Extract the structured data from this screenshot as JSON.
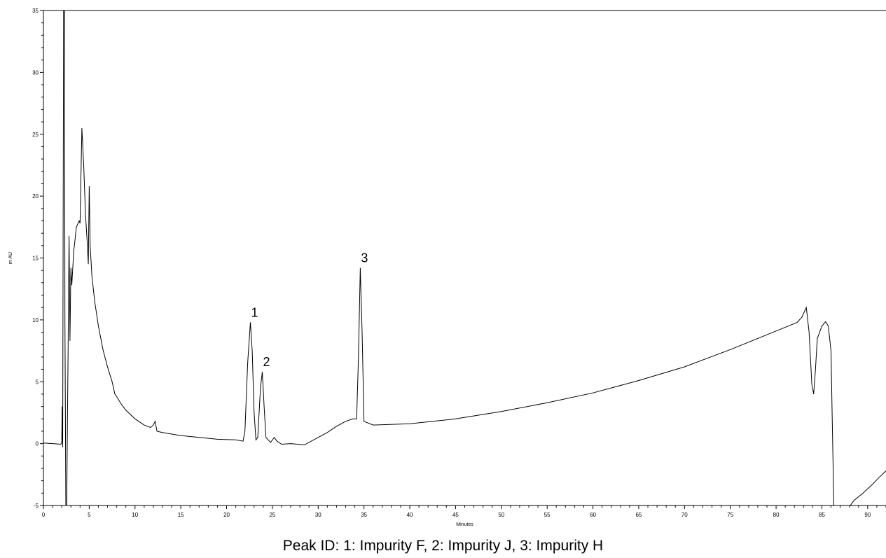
{
  "chart_data": {
    "type": "line",
    "title": "",
    "xlabel": "Minutes",
    "ylabel": "m AU",
    "xlim": [
      0,
      92
    ],
    "ylim": [
      -5,
      35
    ],
    "x_ticks": [
      0,
      5,
      10,
      15,
      20,
      25,
      30,
      35,
      40,
      45,
      50,
      55,
      60,
      65,
      70,
      75,
      80,
      85,
      90
    ],
    "y_ticks": [
      -5,
      0,
      5,
      10,
      15,
      20,
      25,
      30,
      35
    ],
    "grid": false,
    "series": [
      {
        "points": [
          [
            0,
            0.05
          ],
          [
            1.0,
            0
          ],
          [
            1.9,
            -0.05
          ],
          [
            2.0,
            0.1
          ],
          [
            2.05,
            3.0
          ],
          [
            2.1,
            -0.3
          ],
          [
            2.2,
            35
          ],
          [
            2.3,
            35
          ],
          [
            2.35,
            10
          ],
          [
            2.45,
            -5
          ],
          [
            2.55,
            -5
          ],
          [
            2.6,
            0
          ],
          [
            2.7,
            8
          ],
          [
            2.8,
            16.8
          ],
          [
            2.9,
            8.3
          ],
          [
            3.0,
            14.2
          ],
          [
            3.1,
            12.8
          ],
          [
            3.3,
            15.5
          ],
          [
            3.6,
            17.5
          ],
          [
            3.9,
            18
          ],
          [
            4.0,
            17.8
          ],
          [
            4.2,
            25.5
          ],
          [
            4.4,
            22.5
          ],
          [
            4.6,
            18.5
          ],
          [
            4.8,
            16
          ],
          [
            4.9,
            14.5
          ],
          [
            5.0,
            20.8
          ],
          [
            5.1,
            16
          ],
          [
            5.3,
            13.5
          ],
          [
            5.6,
            11.5
          ],
          [
            6.0,
            9.5
          ],
          [
            6.5,
            7.6
          ],
          [
            7.0,
            6.2
          ],
          [
            7.5,
            5.0
          ],
          [
            7.8,
            4.0
          ],
          [
            8.0,
            3.8
          ],
          [
            8.5,
            3.2
          ],
          [
            9.0,
            2.7
          ],
          [
            10.0,
            2.0
          ],
          [
            11.0,
            1.5
          ],
          [
            11.7,
            1.3
          ],
          [
            12.0,
            1.5
          ],
          [
            12.2,
            1.8
          ],
          [
            12.4,
            1.0
          ],
          [
            13.0,
            0.9
          ],
          [
            15.0,
            0.65
          ],
          [
            17.0,
            0.5
          ],
          [
            19.0,
            0.35
          ],
          [
            21.0,
            0.3
          ],
          [
            21.8,
            0.2
          ],
          [
            22.0,
            1.0
          ],
          [
            22.3,
            6.5
          ],
          [
            22.6,
            9.8
          ],
          [
            22.8,
            7.5
          ],
          [
            23.0,
            2.5
          ],
          [
            23.2,
            0.3
          ],
          [
            23.4,
            0.5
          ],
          [
            23.7,
            4.5
          ],
          [
            23.9,
            5.8
          ],
          [
            24.1,
            3.0
          ],
          [
            24.3,
            0.5
          ],
          [
            24.8,
            0.1
          ],
          [
            25.2,
            0.5
          ],
          [
            25.5,
            0.2
          ],
          [
            26.0,
            -0.05
          ],
          [
            27.0,
            0
          ],
          [
            28.5,
            -0.1
          ],
          [
            29.5,
            0.3
          ],
          [
            31.0,
            0.9
          ],
          [
            32.0,
            1.4
          ],
          [
            33.0,
            1.8
          ],
          [
            33.8,
            2.0
          ],
          [
            34.2,
            2.0
          ],
          [
            34.4,
            7.0
          ],
          [
            34.6,
            14.2
          ],
          [
            34.8,
            9.0
          ],
          [
            35.0,
            1.8
          ],
          [
            36.0,
            1.5
          ],
          [
            40.0,
            1.6
          ],
          [
            45.0,
            2.0
          ],
          [
            50.0,
            2.6
          ],
          [
            55.0,
            3.3
          ],
          [
            60.0,
            4.1
          ],
          [
            65.0,
            5.1
          ],
          [
            70.0,
            6.2
          ],
          [
            75.0,
            7.6
          ],
          [
            80.0,
            9.1
          ],
          [
            82.3,
            9.8
          ],
          [
            82.8,
            10.2
          ],
          [
            83.3,
            11.0
          ],
          [
            83.6,
            9.0
          ],
          [
            83.9,
            4.8
          ],
          [
            84.1,
            4.0
          ],
          [
            84.3,
            6.0
          ],
          [
            84.5,
            8.5
          ],
          [
            85.0,
            9.5
          ],
          [
            85.4,
            9.85
          ],
          [
            85.7,
            9.5
          ],
          [
            86.0,
            7.5
          ],
          [
            86.1,
            3.0
          ],
          [
            86.3,
            -5.0
          ],
          [
            88.1,
            -5.0
          ],
          [
            88.5,
            -4.6
          ],
          [
            89.5,
            -4.0
          ],
          [
            90.5,
            -3.3
          ],
          [
            91.3,
            -2.7
          ],
          [
            92.0,
            -2.2
          ]
        ]
      }
    ],
    "annotations": [
      {
        "text": "1",
        "x": 22.6,
        "y": 9.8
      },
      {
        "text": "2",
        "x": 23.9,
        "y": 5.8
      },
      {
        "text": "3",
        "x": 34.6,
        "y": 14.2
      }
    ]
  },
  "caption": "Peak ID: 1: Impurity F, 2: Impurity J, 3:  Impurity H"
}
